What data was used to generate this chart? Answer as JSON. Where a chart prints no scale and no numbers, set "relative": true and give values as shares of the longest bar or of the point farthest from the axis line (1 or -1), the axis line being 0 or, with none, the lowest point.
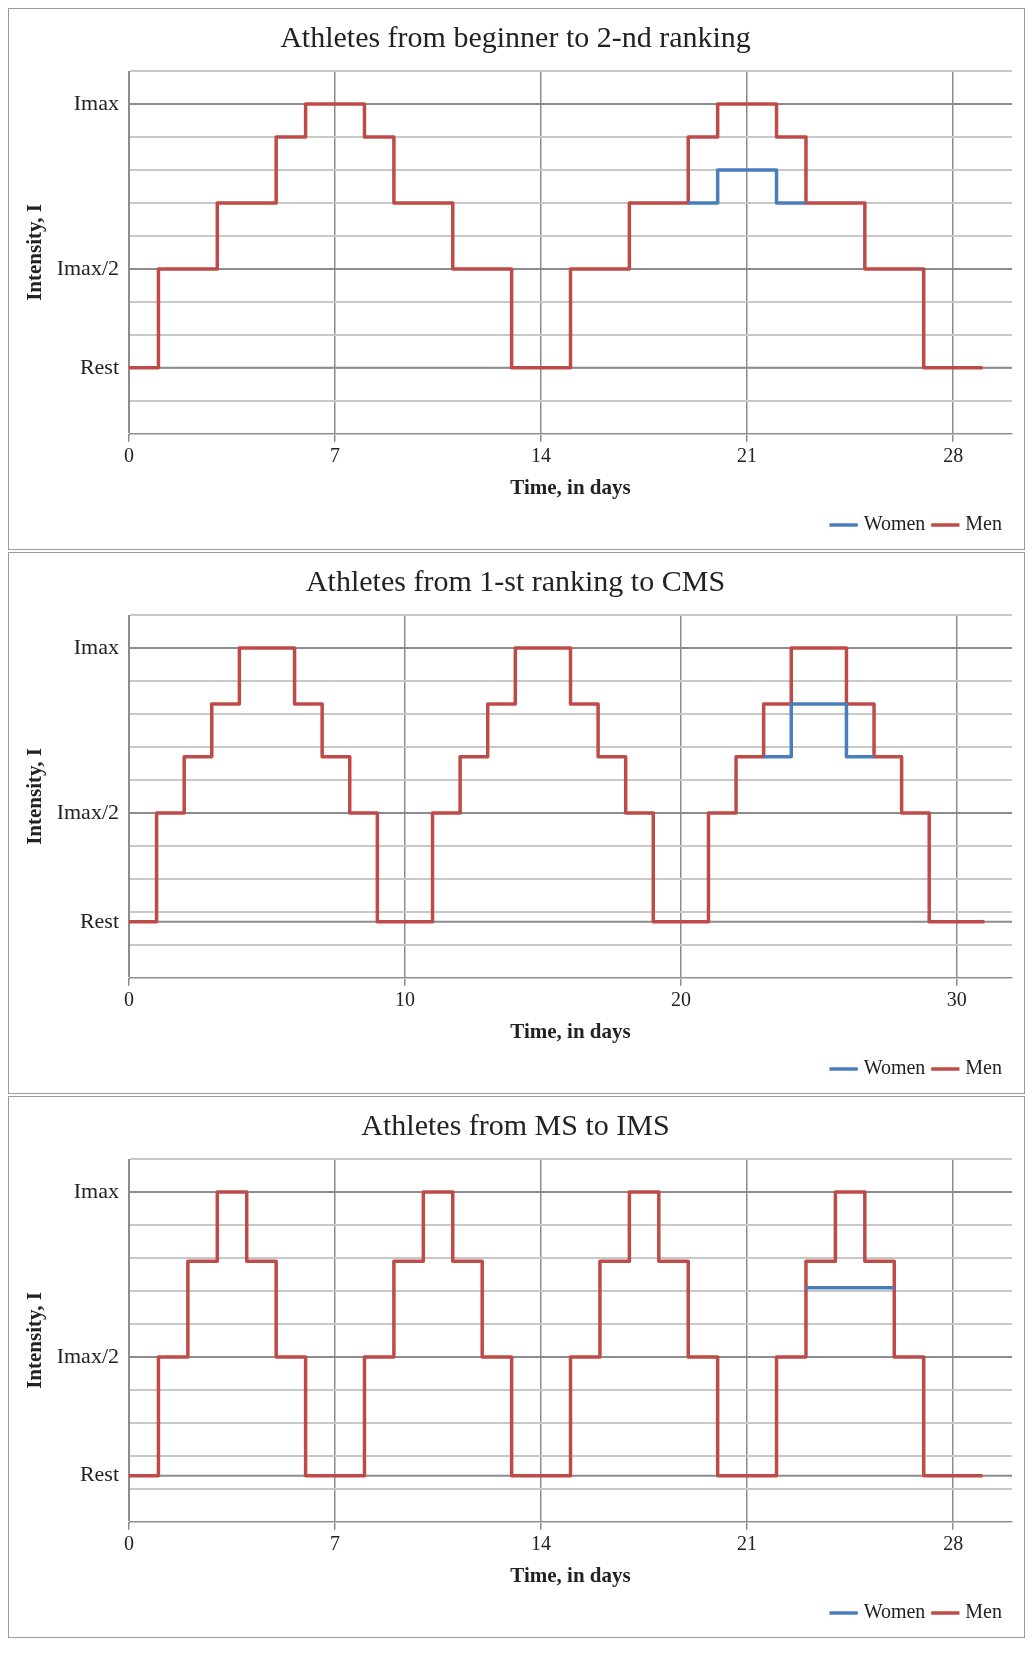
{
  "chart_data": [
    {
      "type": "step",
      "title": "Athletes from beginner to 2-nd ranking",
      "xlabel": "Time, in days",
      "ylabel": "Intensity, I",
      "xlim": [
        0,
        30
      ],
      "xticks": [
        0,
        7,
        14,
        21,
        28
      ],
      "relative": true,
      "grid": true,
      "legend": "bottom right",
      "marker": "none",
      "line_style": "solid",
      "ref_lines": [
        {
          "axis": "y",
          "value": 0.2,
          "label": "Rest",
          "color": "#8c8c8c"
        },
        {
          "axis": "y",
          "value": 0.5,
          "label": "Imax/2",
          "color": "#8c8c8c"
        },
        {
          "axis": "y",
          "value": 1,
          "label": "Imax",
          "color": "#8c8c8c"
        }
      ],
      "series": [
        {
          "name": "Women",
          "color": "#4a7ebb",
          "x": [
            19,
            20,
            22,
            23
          ],
          "values": [
            0.7,
            0.8,
            0.7,
            0.7
          ]
        },
        {
          "name": "Men",
          "color": "#be4b48",
          "x": [
            0,
            1,
            3,
            5,
            6,
            8,
            9,
            11,
            13,
            15,
            17,
            19,
            20,
            22,
            23,
            25,
            27,
            29
          ],
          "values": [
            0.2,
            0.5,
            0.7,
            0.9,
            1,
            0.9,
            0.7,
            0.5,
            0.2,
            0.5,
            0.7,
            0.9,
            1,
            0.9,
            0.7,
            0.5,
            0.2,
            0.2
          ]
        }
      ]
    },
    {
      "type": "step",
      "title": "Athletes from 1-st ranking to CMS",
      "xlabel": "Time, in days",
      "ylabel": "Intensity, I",
      "xlim": [
        0,
        32
      ],
      "xticks": [
        0,
        10,
        20,
        30
      ],
      "relative": true,
      "grid": true,
      "legend": "bottom right",
      "marker": "none",
      "line_style": "solid",
      "ref_lines": [
        {
          "axis": "y",
          "value": 0.17,
          "label": "Rest",
          "color": "#8c8c8c"
        },
        {
          "axis": "y",
          "value": 0.5,
          "label": "Imax/2",
          "color": "#8c8c8c"
        },
        {
          "axis": "y",
          "value": 1,
          "label": "Imax",
          "color": "#8c8c8c"
        }
      ],
      "series": [
        {
          "name": "Women",
          "color": "#4a7ebb",
          "x": [
            23,
            24,
            26,
            27
          ],
          "values": [
            0.67,
            0.83,
            0.67,
            0.67
          ]
        },
        {
          "name": "Men",
          "color": "#be4b48",
          "x": [
            0,
            1,
            2,
            3,
            4,
            6,
            7,
            8,
            9,
            11,
            12,
            13,
            14,
            16,
            17,
            18,
            19,
            21,
            22,
            23,
            24,
            26,
            27,
            28,
            29,
            31
          ],
          "values": [
            0.17,
            0.5,
            0.67,
            0.83,
            1,
            0.83,
            0.67,
            0.5,
            0.17,
            0.5,
            0.67,
            0.83,
            1,
            0.83,
            0.67,
            0.5,
            0.17,
            0.5,
            0.67,
            0.83,
            1,
            0.83,
            0.67,
            0.5,
            0.17,
            0.17
          ]
        }
      ]
    },
    {
      "type": "step",
      "title": "Athletes from MS to IMS",
      "xlabel": "Time, in days",
      "ylabel": "Intensity, I",
      "xlim": [
        0,
        30
      ],
      "xticks": [
        0,
        7,
        14,
        21,
        28
      ],
      "relative": true,
      "grid": true,
      "legend": "bottom right",
      "marker": "none",
      "line_style": "solid",
      "ref_lines": [
        {
          "axis": "y",
          "value": 0.14,
          "label": "Rest",
          "color": "#8c8c8c"
        },
        {
          "axis": "y",
          "value": 0.5,
          "label": "Imax/2",
          "color": "#8c8c8c"
        },
        {
          "axis": "y",
          "value": 1,
          "label": "Imax",
          "color": "#8c8c8c"
        }
      ],
      "series": [
        {
          "name": "Women",
          "color": "#4a7ebb",
          "x": [
            23,
            26
          ],
          "values": [
            0.71,
            0.71
          ]
        },
        {
          "name": "Men",
          "color": "#be4b48",
          "x": [
            0,
            1,
            2,
            3,
            4,
            5,
            6,
            8,
            9,
            10,
            11,
            12,
            13,
            15,
            16,
            17,
            18,
            19,
            20,
            22,
            23,
            24,
            25,
            26,
            27,
            29
          ],
          "values": [
            0.14,
            0.5,
            0.79,
            1,
            0.79,
            0.5,
            0.14,
            0.5,
            0.79,
            1,
            0.79,
            0.5,
            0.14,
            0.5,
            0.79,
            1,
            0.79,
            0.5,
            0.14,
            0.5,
            0.79,
            1,
            0.79,
            0.5,
            0.14,
            0.14
          ]
        }
      ]
    }
  ]
}
